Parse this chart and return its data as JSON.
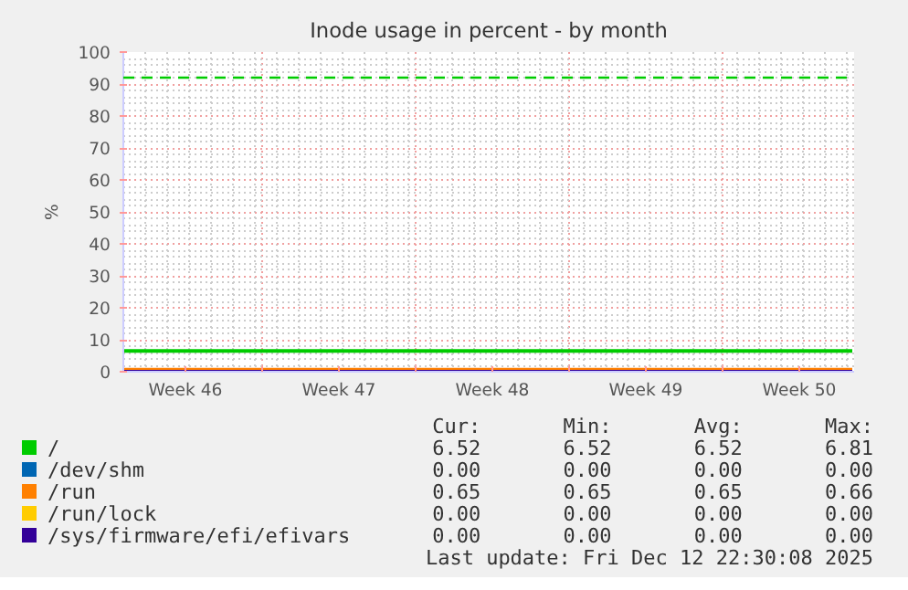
{
  "chart_data": {
    "type": "line",
    "title": "Inode usage in percent - by month",
    "ylabel": "%",
    "xlim": [
      "2025-11-10T16:00",
      "2025-12-14T00:00"
    ],
    "ylim": [
      0,
      100
    ],
    "xticks": [
      {
        "value": "2025-11-13T12:00",
        "label": "Week 46"
      },
      {
        "value": "2025-11-17",
        "label": null
      },
      {
        "value": "2025-11-20T12:00",
        "label": "Week 47"
      },
      {
        "value": "2025-11-24",
        "label": null
      },
      {
        "value": "2025-11-27T12:00",
        "label": "Week 48"
      },
      {
        "value": "2025-12-01",
        "label": null
      },
      {
        "value": "2025-12-04T12:00",
        "label": "Week 49"
      },
      {
        "value": "2025-12-08",
        "label": null
      },
      {
        "value": "2025-12-11T12:00",
        "label": "Week 50"
      }
    ],
    "yticks": [
      0,
      10,
      20,
      30,
      40,
      50,
      60,
      70,
      80,
      90,
      100
    ],
    "grid": true,
    "legend": "bottom left",
    "line_style": "solid",
    "marker": "none",
    "series": [
      {
        "name": "/",
        "color": "#00cc00",
        "x": [
          "2025-11-10T16:00",
          "2025-12-13T22:00"
        ],
        "values": [
          6.52,
          6.52
        ]
      },
      {
        "name": "/dev/shm",
        "color": "#0066b3",
        "values": [
          null,
          null
        ]
      },
      {
        "name": "/run",
        "color": "#ff8000",
        "x": [
          "2025-11-10T16:00",
          "2025-12-13T22:00"
        ],
        "values": [
          0.65,
          0.65
        ]
      },
      {
        "name": "/run/lock",
        "color": "#ffcc00",
        "values": [
          null,
          null
        ]
      },
      {
        "name": "/sys/firmware/efi/efivars",
        "color": "#330099",
        "x": [
          "2025-11-10T16:00",
          "2025-12-13T22:00"
        ],
        "values": [
          0,
          0
        ]
      }
    ],
    "ref_lines": [
      {
        "axis": "y",
        "value": 92,
        "label": null,
        "color": "#00cc00",
        "line_style": "dashed"
      }
    ],
    "annotations": [
      "Cur:   Min:   Avg:   Max:",
      "6.52   6.52   6.52   6.81",
      "0.00   0.00   0.00   0.00",
      "0.65   0.65   0.65   0.66",
      "0.00   0.00   0.00   0.00",
      "0.00   0.00   0.00   0.00",
      "Last update: Fri Dec 12 22:30:08 2025"
    ]
  }
}
